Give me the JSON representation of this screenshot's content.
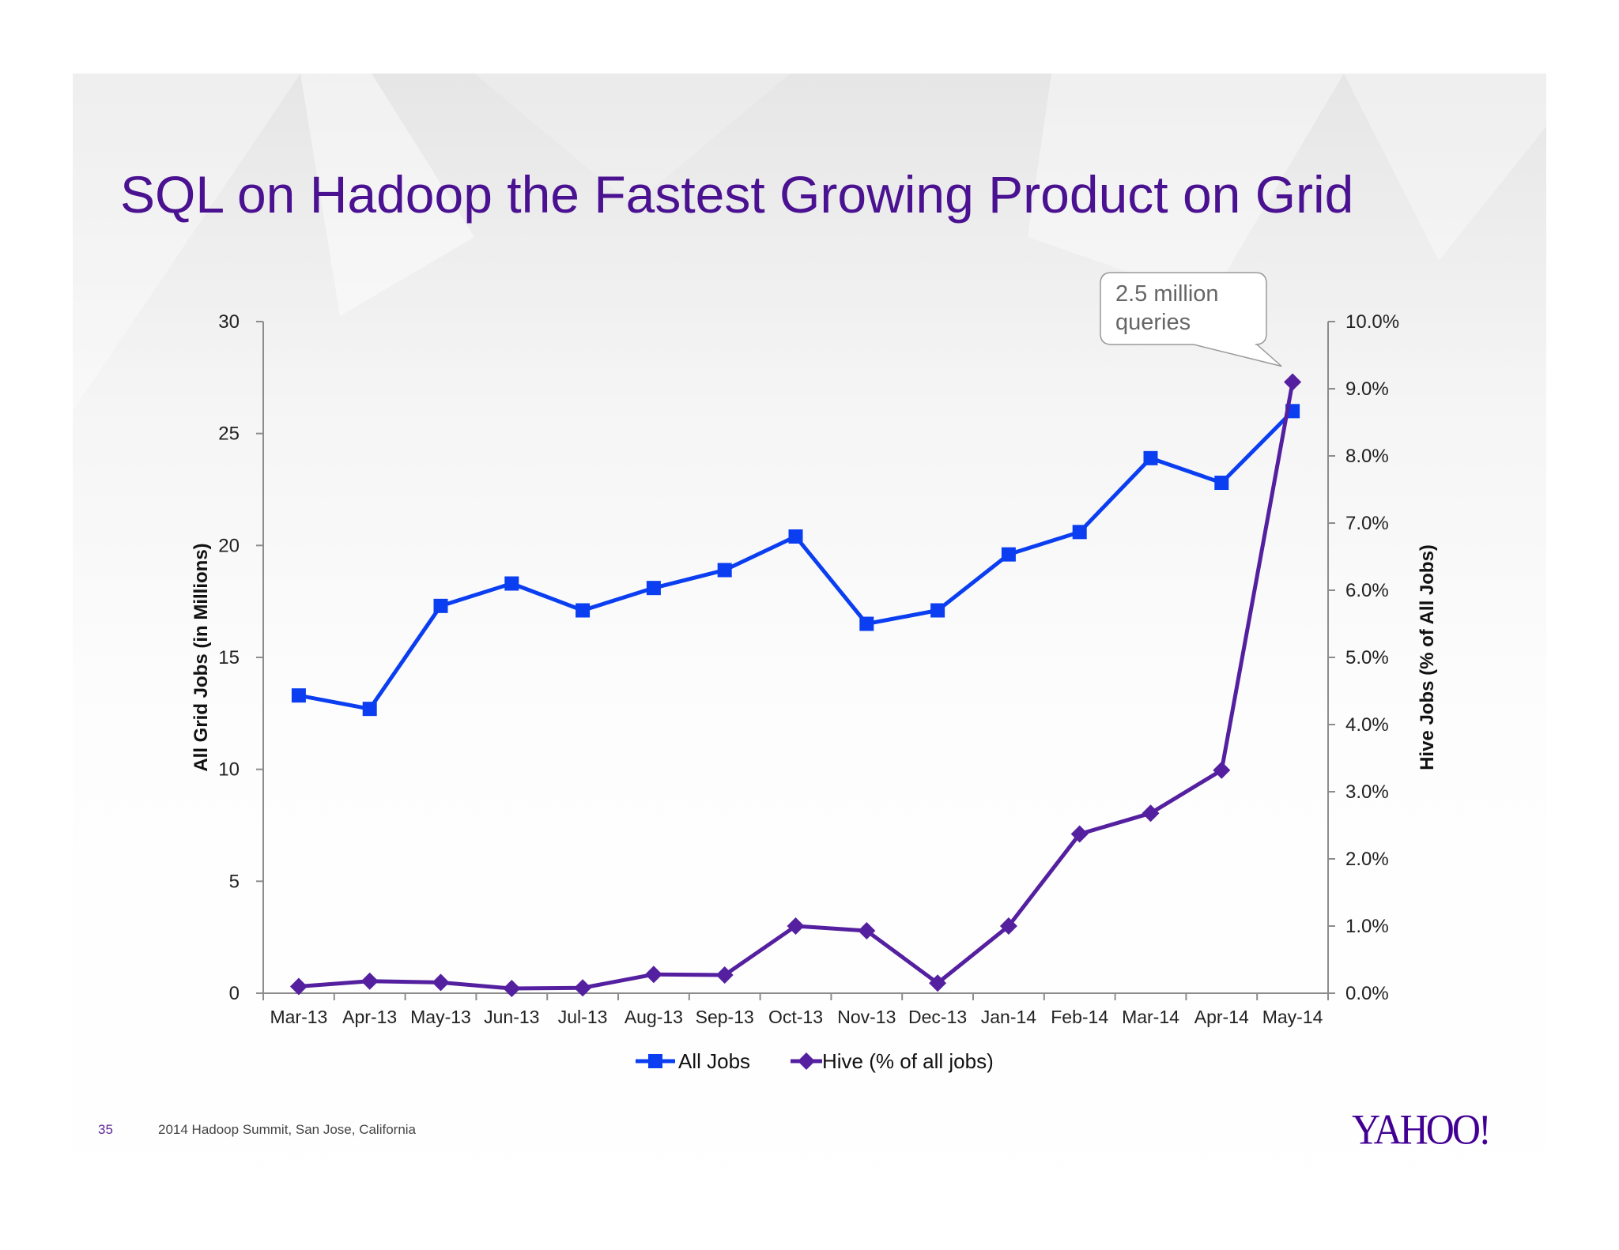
{
  "slide": {
    "title": "SQL on Hadoop the Fastest Growing Product on Grid",
    "page_number": "35",
    "footer": "2014 Hadoop Summit, San Jose, California",
    "logo_text": "YAHOO!",
    "colors": {
      "title": "#4a1191",
      "all_jobs": "#0a3ef0",
      "hive": "#5420a0",
      "logo": "#410093"
    }
  },
  "chart_data": {
    "type": "line",
    "title": "",
    "categories": [
      "Mar-13",
      "Apr-13",
      "May-13",
      "Jun-13",
      "Jul-13",
      "Aug-13",
      "Sep-13",
      "Oct-13",
      "Nov-13",
      "Dec-13",
      "Jan-14",
      "Feb-14",
      "Mar-14",
      "Apr-14",
      "May-14"
    ],
    "ylabel": "All Grid Jobs (in Millions)",
    "ylabel_right": "Hive Jobs (% of All Jobs)",
    "ylim": [
      0,
      30
    ],
    "yticks": [
      "0",
      "5",
      "10",
      "15",
      "20",
      "25",
      "30"
    ],
    "ylim_right": [
      0,
      10
    ],
    "yticks_right": [
      "0.0%",
      "1.0%",
      "2.0%",
      "3.0%",
      "4.0%",
      "5.0%",
      "6.0%",
      "7.0%",
      "8.0%",
      "9.0%",
      "10.0%"
    ],
    "grid": false,
    "legend_position": "bottom",
    "series": [
      {
        "name": "All Jobs",
        "axis": "left",
        "marker": "square",
        "color": "#0a3ef0",
        "values": [
          13.3,
          12.7,
          17.3,
          18.3,
          17.1,
          18.1,
          18.9,
          20.4,
          16.5,
          17.1,
          19.6,
          20.6,
          23.9,
          22.8,
          26.0
        ]
      },
      {
        "name": "Hive (% of all jobs)",
        "axis": "right",
        "marker": "diamond",
        "color": "#5420a0",
        "values": [
          0.1,
          0.18,
          0.16,
          0.07,
          0.08,
          0.28,
          0.27,
          1.0,
          0.93,
          0.15,
          1.0,
          2.37,
          2.68,
          3.32,
          9.1
        ]
      }
    ],
    "annotations": [
      {
        "text_lines": [
          "2.5 million",
          "queries"
        ],
        "points_to": "May-14"
      }
    ]
  }
}
